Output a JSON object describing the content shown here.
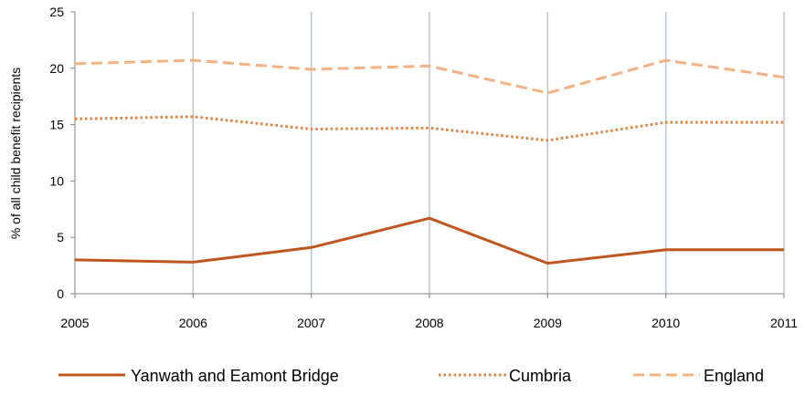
{
  "chart_data": {
    "type": "line",
    "title": "",
    "xlabel": "",
    "ylabel": "% of all child benefit recipients",
    "x": [
      "2005",
      "2006",
      "2007",
      "2008",
      "2009",
      "2010",
      "2011"
    ],
    "ylim": [
      0,
      25
    ],
    "yticks": [
      0,
      5,
      10,
      15,
      20,
      25
    ],
    "grid": "vertical",
    "legend_position": "bottom",
    "series": [
      {
        "name": "Yanwath and Eamont Bridge",
        "values": [
          3.0,
          2.8,
          4.1,
          6.7,
          2.7,
          3.9,
          3.9
        ],
        "style": "solid",
        "color": "#C0561E"
      },
      {
        "name": "Cumbria",
        "values": [
          15.5,
          15.7,
          14.6,
          14.7,
          13.6,
          15.2,
          15.2
        ],
        "style": "dotted",
        "color": "#E3823D"
      },
      {
        "name": "England",
        "values": [
          20.4,
          20.7,
          19.9,
          20.2,
          17.8,
          20.7,
          19.2
        ],
        "style": "dashed",
        "color": "#F4B183"
      }
    ]
  },
  "colors": {
    "grid": "#B8C7D6",
    "axis": "#808080"
  }
}
